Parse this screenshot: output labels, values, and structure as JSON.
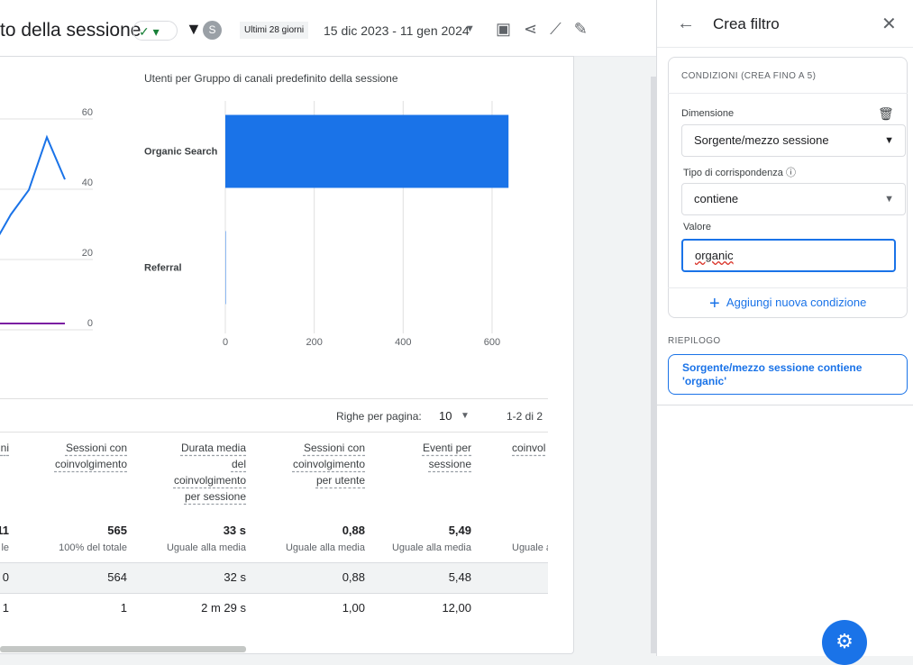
{
  "header": {
    "title": "to della sessione",
    "avatar": "S",
    "period": "Ultimi 28 giorni",
    "dates": "15 dic 2023 - 11 gen 2024"
  },
  "line_chart": {
    "type": "line",
    "ylim": [
      0,
      60
    ],
    "yticks": [
      0,
      20,
      40,
      60
    ],
    "series": [
      {
        "color": "#1a73e8",
        "values": [
          22,
          31,
          38,
          53,
          41
        ]
      },
      {
        "color": "#7b1fa2",
        "values": [
          0,
          0,
          0,
          0,
          0
        ]
      }
    ]
  },
  "bar_chart": {
    "type": "bar",
    "title": "Utenti per Gruppo di canali predefinito della sessione",
    "categories": [
      "Organic Search",
      "Referral"
    ],
    "values": [
      637,
      1
    ],
    "color": "#1a73e8",
    "xlim": [
      0,
      640
    ],
    "xticks": [
      0,
      200,
      400,
      600
    ],
    "grid": true
  },
  "table": {
    "rows_per_page_label": "Righe per pagina:",
    "rows_per_page": "10",
    "range": "1-2 di 2",
    "columns": [
      [
        "ni"
      ],
      [
        "Sessioni con",
        "coinvolgimento"
      ],
      [
        "Durata media",
        "del",
        "coinvolgimento",
        "per sessione"
      ],
      [
        "Sessioni con",
        "coinvolgimento",
        "per utente"
      ],
      [
        "Eventi per",
        "sessione"
      ],
      [
        "coinvol"
      ]
    ],
    "totals": [
      "11",
      "565",
      "33 s",
      "0,88",
      "5,49",
      ""
    ],
    "totals_notes": [
      "le",
      "100% del totale",
      "Uguale alla media",
      "Uguale alla media",
      "Uguale alla media",
      "Uguale a"
    ],
    "rows": [
      [
        "0",
        "564",
        "32 s",
        "0,88",
        "5,48",
        ""
      ],
      [
        "1",
        "1",
        "2 m 29 s",
        "1,00",
        "12,00",
        ""
      ]
    ]
  },
  "panel": {
    "title": "Crea filtro",
    "conditions_label": "CONDIZIONI (CREA FINO A 5)",
    "dimension_label": "Dimensione",
    "dimension": "Sorgente/mezzo sessione",
    "match_label": "Tipo di corrispondenza",
    "match": "contiene",
    "value_label": "Valore",
    "value": "organic",
    "add_condition": "Aggiungi nuova condizione",
    "summary_label": "RIEPILOGO",
    "summary": "Sorgente/mezzo sessione contiene 'organic'"
  }
}
